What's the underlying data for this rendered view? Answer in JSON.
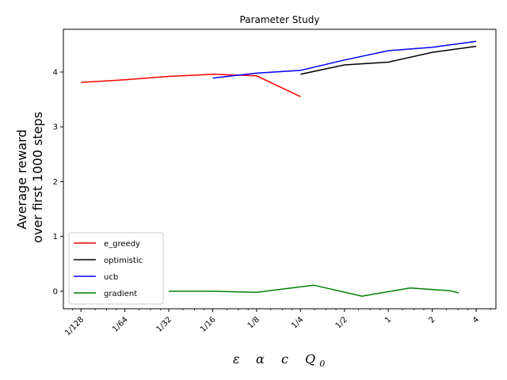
{
  "chart_data": {
    "type": "line",
    "title": "Parameter Study",
    "ylabel_lines": [
      "Average reward",
      "over first 1000 steps"
    ],
    "xlabel_parts": [
      "ε",
      "α",
      "c",
      "Q",
      "0"
    ],
    "xscale": "log2",
    "xlim_log2": [
      -7.4,
      2.45
    ],
    "ylim": [
      -0.32,
      4.78
    ],
    "x_ticks": [
      {
        "label": "1/128",
        "value": -7
      },
      {
        "label": "1/64",
        "value": -6
      },
      {
        "label": "1/32",
        "value": -5
      },
      {
        "label": "1/16",
        "value": -4
      },
      {
        "label": "1/8",
        "value": -3
      },
      {
        "label": "1/4",
        "value": -2
      },
      {
        "label": "1/2",
        "value": -1
      },
      {
        "label": "1",
        "value": 0
      },
      {
        "label": "2",
        "value": 1
      },
      {
        "label": "4",
        "value": 2
      }
    ],
    "y_ticks": [
      {
        "label": "0",
        "value": 0
      },
      {
        "label": "1",
        "value": 1
      },
      {
        "label": "2",
        "value": 2
      },
      {
        "label": "3",
        "value": 3
      },
      {
        "label": "4",
        "value": 4
      }
    ],
    "legend_position": "lower-left",
    "series": [
      {
        "name": "e_greedy",
        "color": "#ff0000",
        "x": [
          -7,
          -6,
          -5,
          -4,
          -3,
          -2
        ],
        "y": [
          3.81,
          3.86,
          3.92,
          3.96,
          3.93,
          3.55
        ]
      },
      {
        "name": "optimistic",
        "color": "#000000",
        "x": [
          -2,
          -1,
          0,
          1,
          2
        ],
        "y": [
          3.96,
          4.13,
          4.18,
          4.36,
          4.47
        ]
      },
      {
        "name": "ucb",
        "color": "#0000ff",
        "x": [
          -4,
          -3,
          -2,
          -1,
          0,
          1,
          2
        ],
        "y": [
          3.89,
          3.98,
          4.03,
          4.22,
          4.39,
          4.45,
          4.56
        ]
      },
      {
        "name": "gradient",
        "color": "#008000",
        "x": [
          -5,
          -4,
          -3,
          -2,
          -1,
          0,
          1,
          2
        ],
        "y": [
          0.0,
          0.0,
          -0.02,
          0.11,
          -0.09,
          0.06,
          0.01,
          -0.03
        ],
        "x_plot": [
          -5,
          -4,
          -3,
          -1.7,
          -0.6,
          0.5,
          1.4,
          1.6
        ]
      }
    ]
  }
}
